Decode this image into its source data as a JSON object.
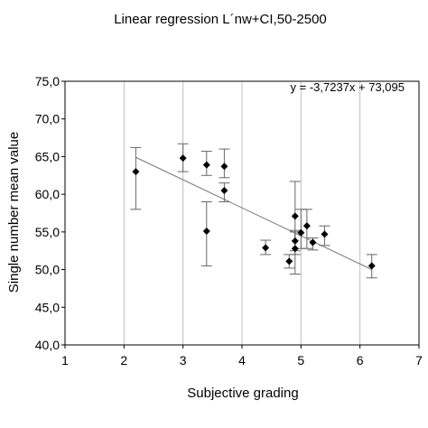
{
  "chart_data": {
    "type": "scatter",
    "title": "Linear regression L´nw+CI,50-2500",
    "xlabel": "Subjective grading",
    "ylabel": "Single number mean value",
    "xlim": [
      1,
      7
    ],
    "ylim": [
      40,
      75
    ],
    "xticks": [
      "1",
      "2",
      "3",
      "4",
      "5",
      "6",
      "7"
    ],
    "yticks": [
      "40,0",
      "45,0",
      "50,0",
      "55,0",
      "60,0",
      "65,0",
      "70,0",
      "75,0"
    ],
    "grid": "vertical",
    "legend": "none",
    "trendline": {
      "slope": -3.7237,
      "intercept": 73.095,
      "x_range": [
        2.2,
        6.2
      ],
      "equation": "y = -3,7237x + 73,095"
    },
    "points": [
      {
        "x": 2.2,
        "y": 63.0,
        "err_low": 58.0,
        "err_high": 66.2
      },
      {
        "x": 3.0,
        "y": 64.8,
        "err_low": 63.0,
        "err_high": 66.7
      },
      {
        "x": 3.4,
        "y": 63.9,
        "err_low": 62.5,
        "err_high": 65.7
      },
      {
        "x": 3.4,
        "y": 55.1,
        "err_low": 50.5,
        "err_high": 59.0
      },
      {
        "x": 3.7,
        "y": 63.7,
        "err_low": 62.2,
        "err_high": 66.0
      },
      {
        "x": 3.7,
        "y": 60.5,
        "err_low": 59.0,
        "err_high": 61.5
      },
      {
        "x": 4.4,
        "y": 52.9,
        "err_low": 52.0,
        "err_high": 53.9
      },
      {
        "x": 4.8,
        "y": 51.1,
        "err_low": 50.2,
        "err_high": 52.0
      },
      {
        "x": 4.9,
        "y": 57.1,
        "err_low": 52.5,
        "err_high": 61.7
      },
      {
        "x": 4.9,
        "y": 53.8,
        "err_low": 52.0,
        "err_high": 55.2
      },
      {
        "x": 4.9,
        "y": 52.8,
        "err_low": 49.4,
        "err_high": 55.0
      },
      {
        "x": 5.0,
        "y": 54.9,
        "err_low": 52.8,
        "err_high": 58.0
      },
      {
        "x": 5.1,
        "y": 55.8,
        "err_low": 52.8,
        "err_high": 58.0
      },
      {
        "x": 5.2,
        "y": 53.6,
        "err_low": 52.6,
        "err_high": 54.2
      },
      {
        "x": 5.4,
        "y": 54.7,
        "err_low": 53.2,
        "err_high": 55.8
      },
      {
        "x": 6.2,
        "y": 50.5,
        "err_low": 48.9,
        "err_high": 52.0
      }
    ]
  }
}
